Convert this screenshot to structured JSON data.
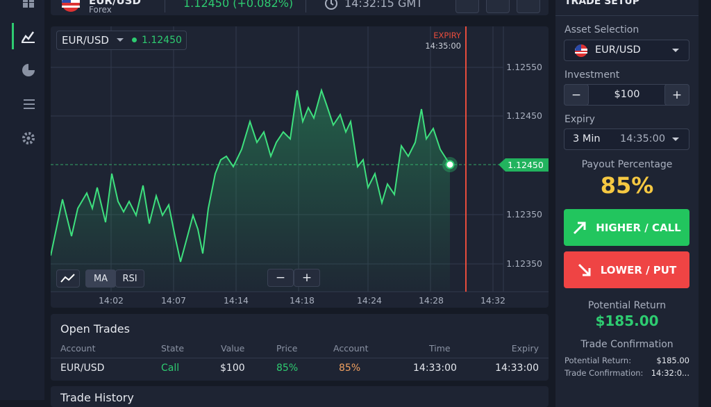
{
  "top_bar": {
    "asset": "EUR/USD",
    "market": "Forex",
    "price": "1.12450 (+0.082%)",
    "time": "14:32:15 GMT"
  },
  "chart": {
    "asset": "EUR/USD",
    "price": "1.12450",
    "expiry_label": "EXPIRY",
    "expiry_time": "14:35:00",
    "y_labels": [
      "1.12550",
      "1.12450",
      "1.12350",
      "1.12350"
    ],
    "current_price": "1.12450",
    "x_labels": [
      "14:02",
      "14:07",
      "14:14",
      "14:18",
      "14:24",
      "14:28",
      "14:32"
    ],
    "indicators": [
      "MA",
      "RSI"
    ],
    "zoom": [
      "−",
      "+"
    ]
  },
  "open_trades": {
    "title": "Open Trades",
    "columns": [
      "Account",
      "State",
      "Value",
      "Price",
      "Account",
      "Time",
      "Expiry"
    ],
    "rows": [
      [
        "EUR/USD",
        "Call",
        "$100",
        "85%",
        "85%",
        "14:33:00",
        "14:33:00"
      ]
    ]
  },
  "trade_history": {
    "title": "Trade History"
  },
  "trade_setup": {
    "title": "TRADE SETUP",
    "asset_label": "Asset Selection",
    "asset": "EUR/USD",
    "investment_label": "Investment",
    "minus": "−",
    "investment": "$100",
    "plus": "+",
    "expiry_label": "Expiry",
    "expiry_duration": "3 Min",
    "expiry_time": "14:35:00",
    "payout_label": "Payout Percentage",
    "payout": "85%",
    "higher": "HIGHER / CALL",
    "lower": "LOWER / PUT",
    "return_label": "Potential Return",
    "return": "$185.00",
    "confirmation_title": "Trade Confirmation",
    "summary": [
      [
        "Potential Return:",
        "$185.00"
      ],
      [
        "Trade Confirmation:",
        "14:32:0..."
      ]
    ]
  }
}
